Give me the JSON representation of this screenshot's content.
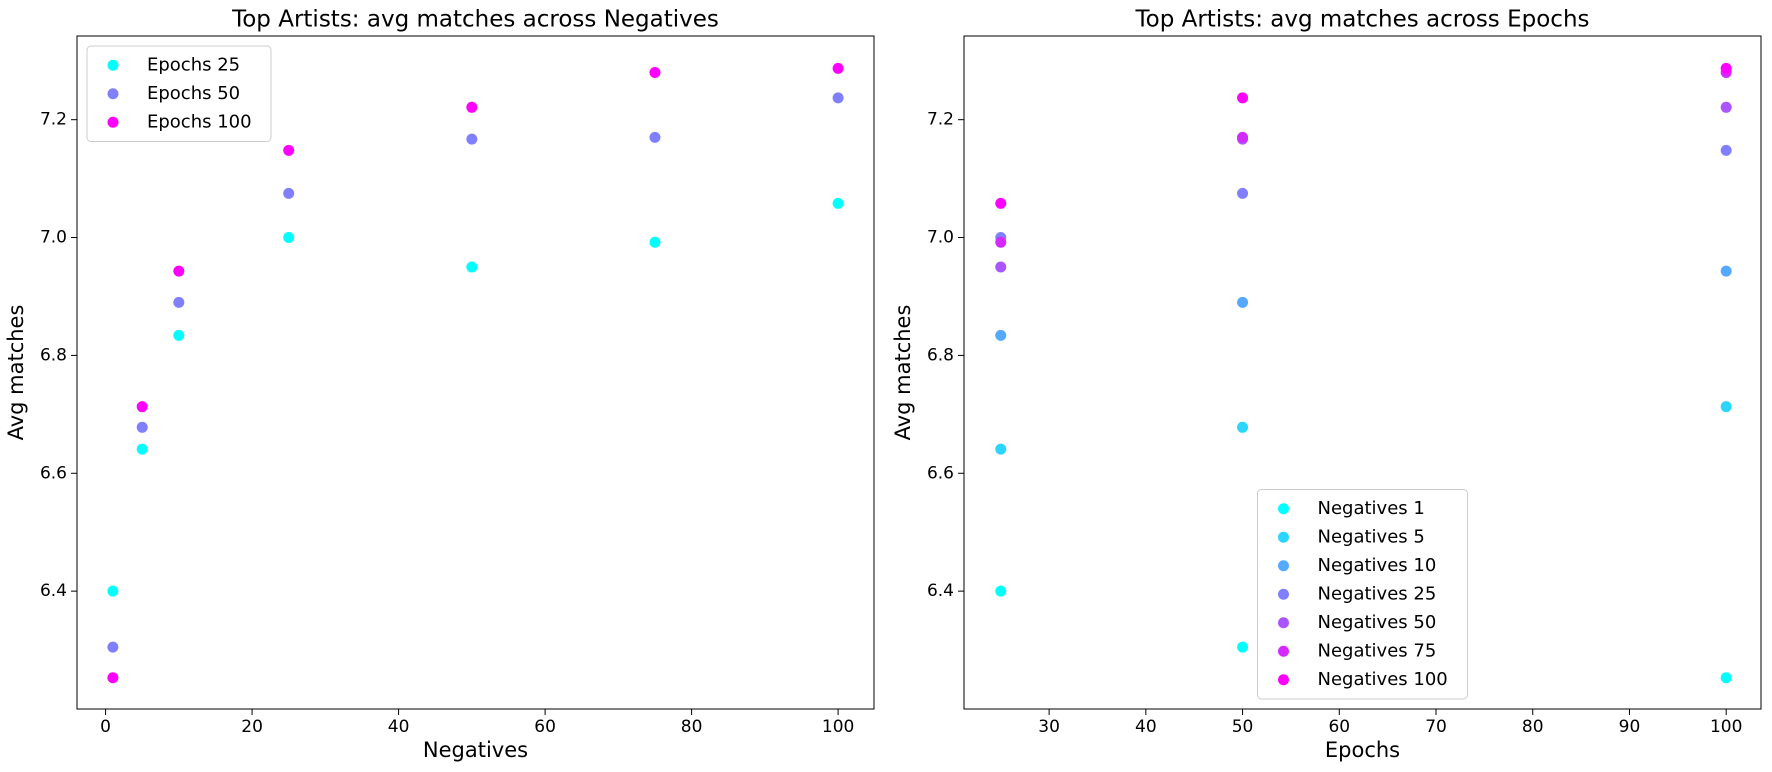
{
  "chart_data": [
    {
      "type": "scatter",
      "title": "Top Artists: avg matches across Negatives",
      "x_label": "Negatives",
      "y_label": "Avg matches",
      "x": [
        1,
        5,
        10,
        25,
        50,
        75,
        100
      ],
      "series": [
        {
          "name": "Epochs 25",
          "color": "#00ffff",
          "values": [
            6.4,
            6.641,
            6.834,
            7.0,
            6.95,
            6.992,
            7.058
          ]
        },
        {
          "name": "Epochs 50",
          "color": "#8080ff",
          "values": [
            6.305,
            6.678,
            6.89,
            7.075,
            7.167,
            7.17,
            7.237
          ]
        },
        {
          "name": "Epochs 100",
          "color": "#ff00ff",
          "values": [
            6.253,
            6.713,
            6.943,
            7.148,
            7.221,
            7.28,
            7.287
          ]
        }
      ],
      "xlim": [
        -3.9,
        104.9
      ],
      "ylim": [
        6.2,
        7.342
      ],
      "xticks": [
        0,
        20,
        40,
        60,
        80,
        100
      ],
      "yticks": [
        6.4,
        6.6,
        6.8,
        {
          "value": 7,
          "label": "7.0"
        },
        7.2
      ],
      "legend": "upper-left"
    },
    {
      "type": "scatter",
      "title": "Top Artists: avg matches across Epochs",
      "x_label": "Epochs",
      "y_label": "Avg matches",
      "x": [
        25,
        50,
        100
      ],
      "series": [
        {
          "name": "Negatives 1",
          "color": "#00ffff",
          "values": [
            6.4,
            6.305,
            6.253
          ]
        },
        {
          "name": "Negatives 5",
          "color": "#2ad5ff",
          "values": [
            6.641,
            6.678,
            6.713
          ]
        },
        {
          "name": "Negatives 10",
          "color": "#55aaff",
          "values": [
            6.834,
            6.89,
            6.943
          ]
        },
        {
          "name": "Negatives 25",
          "color": "#8080ff",
          "values": [
            7.0,
            7.075,
            7.148
          ]
        },
        {
          "name": "Negatives 50",
          "color": "#aa55ff",
          "values": [
            6.95,
            7.167,
            7.221
          ]
        },
        {
          "name": "Negatives 75",
          "color": "#d52aff",
          "values": [
            6.992,
            7.17,
            7.28
          ]
        },
        {
          "name": "Negatives 100",
          "color": "#ff00ff",
          "values": [
            7.058,
            7.237,
            7.287
          ]
        }
      ],
      "xlim": [
        21.2,
        103.6
      ],
      "ylim": [
        6.2,
        7.342
      ],
      "xticks": [
        30,
        40,
        50,
        60,
        70,
        80,
        90,
        100
      ],
      "yticks": [
        6.4,
        6.6,
        6.8,
        {
          "value": 7,
          "label": "7.0"
        },
        7.2
      ],
      "legend": "lower-center"
    }
  ]
}
